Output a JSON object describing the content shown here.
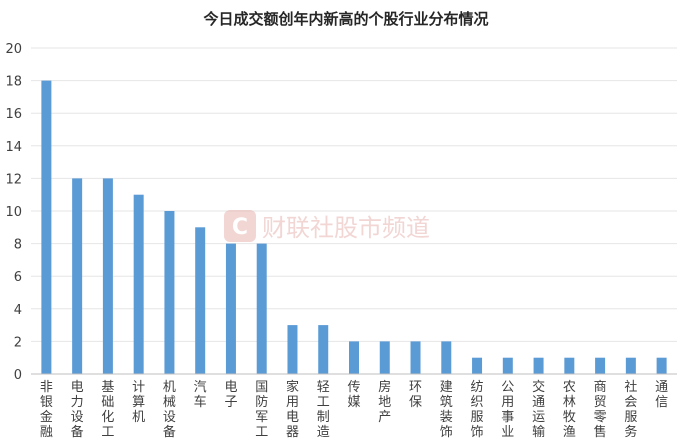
{
  "chart_data": {
    "type": "bar",
    "title": "今日成交额创年内新高的个股行业分布情况",
    "xlabel": "",
    "ylabel": "",
    "ylim": [
      0,
      20
    ],
    "yticks": [
      0,
      2,
      4,
      6,
      8,
      10,
      12,
      14,
      16,
      18,
      20
    ],
    "grid": true,
    "legend": "none",
    "bar_color": "#5b9bd5",
    "categories": [
      "非银金融",
      "电力设备",
      "基础化工",
      "计算机",
      "机械设备",
      "汽车",
      "电子",
      "国防军工",
      "家用电器",
      "轻工制造",
      "传媒",
      "房地产",
      "环保",
      "建筑装饰",
      "纺织服饰",
      "公用事业",
      "交通运输",
      "农林牧渔",
      "商贸零售",
      "社会服务",
      "通信"
    ],
    "values": [
      18,
      12,
      12,
      11,
      10,
      9,
      8,
      8,
      3,
      3,
      2,
      2,
      2,
      2,
      1,
      1,
      1,
      1,
      1,
      1,
      1
    ]
  },
  "watermark": {
    "logo_glyph": "C",
    "text": "财联社股市频道",
    "color": "#d94a3b"
  }
}
